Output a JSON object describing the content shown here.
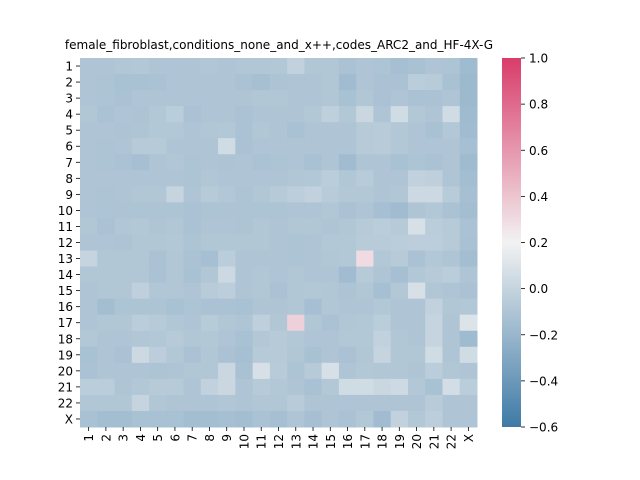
{
  "chart_data": {
    "type": "heatmap",
    "title": "female_fibroblast,conditions_none_and_x++,codes_ARC2_and_HF-4X-G",
    "xlabel": "",
    "ylabel": "",
    "x_categories": [
      "1",
      "2",
      "3",
      "4",
      "5",
      "6",
      "7",
      "8",
      "9",
      "10",
      "11",
      "12",
      "13",
      "14",
      "15",
      "16",
      "17",
      "18",
      "19",
      "20",
      "21",
      "22",
      "X"
    ],
    "y_categories": [
      "1",
      "2",
      "3",
      "4",
      "5",
      "6",
      "7",
      "8",
      "9",
      "10",
      "11",
      "12",
      "13",
      "14",
      "15",
      "16",
      "17",
      "18",
      "19",
      "20",
      "21",
      "22",
      "X"
    ],
    "colorbar": {
      "range": [
        -0.6,
        1.0
      ],
      "ticks": [
        "1.0",
        "0.8",
        "0.6",
        "0.4",
        "0.2",
        "0.0",
        "−0.2",
        "−0.4",
        "−0.6"
      ],
      "low_color": "#3f7aa6",
      "mid_color": "#f2f2f2",
      "high_color": "#d93c6b",
      "mid_value": 0.2
    },
    "values": [
      [
        -0.1,
        -0.1,
        -0.09,
        -0.08,
        -0.1,
        -0.1,
        -0.1,
        -0.09,
        -0.1,
        -0.09,
        -0.09,
        -0.08,
        -0.02,
        -0.09,
        -0.09,
        -0.12,
        -0.1,
        -0.11,
        -0.14,
        -0.13,
        -0.1,
        -0.11,
        -0.17
      ],
      [
        -0.1,
        -0.11,
        -0.13,
        -0.13,
        -0.12,
        -0.1,
        -0.1,
        -0.1,
        -0.1,
        -0.12,
        -0.14,
        -0.11,
        -0.1,
        -0.1,
        -0.09,
        -0.16,
        -0.1,
        -0.12,
        -0.12,
        -0.05,
        -0.06,
        -0.13,
        -0.18
      ],
      [
        -0.1,
        -0.11,
        -0.12,
        -0.1,
        -0.1,
        -0.1,
        -0.1,
        -0.1,
        -0.1,
        -0.1,
        -0.09,
        -0.09,
        -0.1,
        -0.1,
        -0.09,
        -0.13,
        -0.09,
        -0.12,
        -0.1,
        -0.12,
        -0.12,
        -0.1,
        -0.18
      ],
      [
        -0.09,
        -0.12,
        -0.1,
        -0.11,
        -0.08,
        -0.05,
        -0.12,
        -0.1,
        -0.1,
        -0.12,
        -0.1,
        -0.1,
        -0.1,
        -0.08,
        -0.03,
        -0.08,
        0.02,
        -0.1,
        0.05,
        -0.08,
        -0.1,
        0.05,
        -0.17
      ],
      [
        -0.1,
        -0.1,
        -0.11,
        -0.1,
        -0.08,
        -0.08,
        -0.1,
        -0.09,
        -0.08,
        -0.12,
        -0.09,
        -0.1,
        -0.13,
        -0.1,
        -0.1,
        -0.1,
        -0.07,
        -0.06,
        -0.08,
        -0.1,
        -0.13,
        -0.08,
        -0.16
      ],
      [
        -0.1,
        -0.11,
        -0.1,
        -0.07,
        -0.07,
        -0.1,
        -0.1,
        -0.1,
        0.05,
        -0.12,
        -0.1,
        -0.1,
        -0.1,
        -0.1,
        -0.1,
        -0.1,
        -0.07,
        -0.06,
        -0.08,
        -0.1,
        -0.1,
        -0.1,
        -0.14
      ],
      [
        -0.1,
        -0.11,
        -0.12,
        -0.14,
        -0.1,
        -0.09,
        -0.11,
        -0.1,
        -0.11,
        -0.1,
        -0.12,
        -0.11,
        -0.1,
        -0.13,
        -0.1,
        -0.16,
        -0.1,
        -0.1,
        -0.13,
        -0.11,
        -0.12,
        -0.1,
        -0.17
      ],
      [
        -0.1,
        -0.1,
        -0.1,
        -0.1,
        -0.1,
        -0.1,
        -0.11,
        -0.09,
        -0.1,
        -0.1,
        -0.1,
        -0.1,
        -0.09,
        -0.08,
        -0.05,
        -0.09,
        -0.06,
        -0.1,
        -0.1,
        -0.02,
        -0.03,
        -0.1,
        -0.15
      ],
      [
        -0.1,
        -0.11,
        -0.1,
        -0.09,
        -0.09,
        0.0,
        -0.1,
        -0.07,
        -0.08,
        -0.11,
        -0.09,
        -0.07,
        -0.04,
        -0.02,
        -0.06,
        -0.08,
        -0.08,
        -0.1,
        -0.09,
        0.03,
        0.03,
        -0.06,
        -0.14
      ],
      [
        -0.1,
        -0.11,
        -0.11,
        -0.11,
        -0.11,
        -0.11,
        -0.12,
        -0.11,
        -0.11,
        -0.11,
        -0.11,
        -0.11,
        -0.1,
        -0.1,
        -0.09,
        -0.12,
        -0.1,
        -0.14,
        -0.16,
        -0.1,
        -0.08,
        -0.12,
        -0.15
      ],
      [
        -0.09,
        -0.12,
        -0.09,
        -0.08,
        -0.1,
        -0.09,
        -0.12,
        -0.1,
        -0.1,
        -0.11,
        -0.09,
        -0.1,
        -0.09,
        -0.09,
        -0.1,
        -0.09,
        -0.07,
        -0.05,
        -0.07,
        0.08,
        -0.05,
        -0.07,
        -0.12
      ],
      [
        -0.1,
        -0.1,
        -0.11,
        -0.09,
        -0.09,
        -0.08,
        -0.11,
        -0.09,
        -0.09,
        -0.09,
        -0.09,
        -0.1,
        -0.11,
        -0.1,
        -0.08,
        -0.08,
        -0.06,
        -0.06,
        -0.05,
        -0.04,
        -0.04,
        -0.07,
        -0.13
      ],
      [
        0.0,
        -0.09,
        -0.09,
        -0.09,
        -0.12,
        -0.09,
        -0.12,
        -0.14,
        -0.05,
        -0.1,
        -0.1,
        -0.1,
        -0.11,
        -0.1,
        -0.09,
        -0.08,
        0.3,
        -0.08,
        -0.07,
        -0.12,
        -0.08,
        -0.1,
        -0.15
      ],
      [
        -0.09,
        -0.09,
        -0.09,
        -0.09,
        -0.12,
        -0.09,
        -0.13,
        -0.09,
        0.03,
        -0.1,
        -0.09,
        -0.1,
        -0.09,
        -0.1,
        -0.1,
        -0.16,
        -0.07,
        -0.1,
        -0.14,
        -0.08,
        -0.07,
        -0.05,
        -0.1
      ],
      [
        -0.1,
        -0.09,
        -0.09,
        -0.03,
        -0.09,
        -0.09,
        -0.1,
        -0.06,
        -0.04,
        -0.1,
        -0.09,
        -0.12,
        -0.09,
        -0.08,
        -0.09,
        -0.11,
        -0.09,
        -0.14,
        -0.08,
        0.08,
        -0.09,
        -0.1,
        -0.12
      ],
      [
        -0.1,
        -0.15,
        -0.11,
        -0.11,
        -0.11,
        -0.13,
        -0.11,
        -0.12,
        -0.12,
        -0.13,
        -0.1,
        -0.1,
        -0.09,
        -0.14,
        -0.09,
        -0.1,
        -0.1,
        -0.08,
        -0.1,
        -0.1,
        -0.02,
        -0.09,
        -0.08
      ],
      [
        -0.1,
        -0.09,
        -0.09,
        -0.05,
        -0.07,
        -0.09,
        -0.1,
        -0.06,
        -0.09,
        -0.1,
        -0.03,
        -0.09,
        0.35,
        -0.09,
        -0.12,
        -0.09,
        -0.08,
        -0.05,
        -0.1,
        -0.1,
        0.0,
        -0.1,
        0.1
      ],
      [
        -0.08,
        -0.1,
        -0.1,
        -0.09,
        -0.08,
        -0.07,
        -0.09,
        -0.08,
        -0.1,
        -0.13,
        -0.08,
        -0.07,
        -0.08,
        -0.1,
        -0.1,
        -0.08,
        -0.08,
        -0.02,
        -0.09,
        -0.1,
        0.0,
        -0.1,
        -0.17
      ],
      [
        -0.13,
        -0.1,
        -0.12,
        0.03,
        -0.04,
        -0.08,
        -0.12,
        -0.09,
        -0.12,
        -0.14,
        -0.07,
        -0.07,
        -0.09,
        -0.13,
        -0.1,
        -0.12,
        -0.09,
        0.0,
        -0.09,
        -0.09,
        0.05,
        -0.1,
        0.05
      ],
      [
        -0.12,
        -0.1,
        -0.1,
        -0.1,
        -0.11,
        -0.1,
        -0.09,
        -0.09,
        0.02,
        -0.13,
        0.08,
        -0.06,
        -0.11,
        -0.07,
        0.08,
        -0.1,
        -0.08,
        -0.09,
        -0.09,
        -0.1,
        -0.05,
        -0.09,
        -0.1
      ],
      [
        -0.05,
        -0.05,
        -0.1,
        -0.08,
        -0.07,
        -0.07,
        -0.1,
        -0.02,
        0.02,
        -0.1,
        -0.07,
        -0.08,
        -0.1,
        -0.13,
        -0.08,
        0.05,
        0.05,
        0.02,
        0.04,
        -0.08,
        -0.13,
        0.06,
        -0.05
      ],
      [
        -0.09,
        -0.09,
        -0.09,
        0.0,
        -0.09,
        -0.1,
        -0.1,
        -0.1,
        -0.09,
        -0.1,
        -0.09,
        -0.09,
        -0.06,
        -0.1,
        -0.1,
        -0.1,
        -0.1,
        -0.1,
        -0.1,
        -0.1,
        -0.06,
        -0.1,
        -0.1
      ],
      [
        -0.13,
        -0.15,
        -0.15,
        -0.13,
        -0.13,
        -0.13,
        -0.15,
        -0.15,
        -0.14,
        -0.15,
        -0.12,
        -0.14,
        -0.1,
        -0.14,
        -0.1,
        -0.12,
        -0.08,
        -0.16,
        -0.02,
        -0.08,
        -0.04,
        -0.1,
        -0.1
      ]
    ]
  }
}
